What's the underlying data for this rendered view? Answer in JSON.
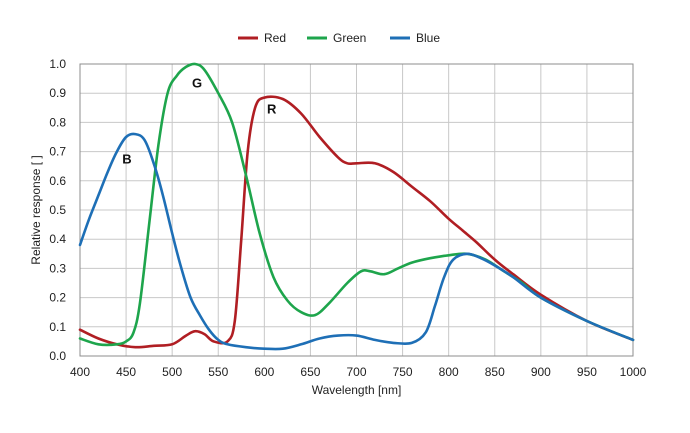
{
  "chart_data": {
    "type": "line",
    "title": "",
    "xlabel": "Wavelength [nm]",
    "ylabel": "Relative response [ ]",
    "xlim": [
      400,
      1000
    ],
    "ylim": [
      0,
      1.0
    ],
    "x_ticks": [
      400,
      450,
      500,
      550,
      600,
      650,
      700,
      750,
      800,
      850,
      900,
      950,
      1000
    ],
    "y_ticks": [
      0.0,
      0.1,
      0.2,
      0.3,
      0.4,
      0.5,
      0.6,
      0.7,
      0.8,
      0.9,
      1.0
    ],
    "x_tick_labels": [
      "400",
      "450",
      "500",
      "550",
      "600",
      "650",
      "700",
      "750",
      "800",
      "850",
      "900",
      "950",
      "1000"
    ],
    "y_tick_labels": [
      "0.0",
      "0.1",
      "0.2",
      "0.3",
      "0.4",
      "0.5",
      "0.6",
      "0.7",
      "0.8",
      "0.9",
      "1.0"
    ],
    "grid": true,
    "legend_position": "top-center",
    "series": [
      {
        "name": "Red",
        "color": "#b01e23",
        "annotation": "R",
        "annotation_at": [
          608,
          0.83
        ],
        "points": [
          [
            400,
            0.09
          ],
          [
            420,
            0.06
          ],
          [
            440,
            0.04
          ],
          [
            460,
            0.03
          ],
          [
            480,
            0.035
          ],
          [
            500,
            0.04
          ],
          [
            515,
            0.07
          ],
          [
            525,
            0.085
          ],
          [
            535,
            0.075
          ],
          [
            545,
            0.05
          ],
          [
            560,
            0.05
          ],
          [
            568,
            0.12
          ],
          [
            575,
            0.4
          ],
          [
            582,
            0.7
          ],
          [
            590,
            0.85
          ],
          [
            600,
            0.885
          ],
          [
            620,
            0.88
          ],
          [
            640,
            0.83
          ],
          [
            660,
            0.75
          ],
          [
            680,
            0.68
          ],
          [
            690,
            0.66
          ],
          [
            700,
            0.66
          ],
          [
            720,
            0.66
          ],
          [
            740,
            0.63
          ],
          [
            760,
            0.58
          ],
          [
            780,
            0.53
          ],
          [
            800,
            0.47
          ],
          [
            815,
            0.43
          ],
          [
            830,
            0.39
          ],
          [
            850,
            0.33
          ],
          [
            870,
            0.28
          ],
          [
            900,
            0.21
          ],
          [
            950,
            0.12
          ],
          [
            1000,
            0.055
          ]
        ]
      },
      {
        "name": "Green",
        "color": "#1ea54c",
        "annotation": "G",
        "annotation_at": [
          527,
          0.92
        ],
        "points": [
          [
            400,
            0.06
          ],
          [
            420,
            0.04
          ],
          [
            440,
            0.04
          ],
          [
            450,
            0.05
          ],
          [
            458,
            0.08
          ],
          [
            465,
            0.18
          ],
          [
            475,
            0.45
          ],
          [
            485,
            0.72
          ],
          [
            495,
            0.9
          ],
          [
            505,
            0.96
          ],
          [
            515,
            0.99
          ],
          [
            525,
            1.0
          ],
          [
            535,
            0.98
          ],
          [
            550,
            0.9
          ],
          [
            565,
            0.8
          ],
          [
            580,
            0.62
          ],
          [
            595,
            0.42
          ],
          [
            610,
            0.27
          ],
          [
            625,
            0.19
          ],
          [
            640,
            0.15
          ],
          [
            655,
            0.14
          ],
          [
            670,
            0.18
          ],
          [
            690,
            0.25
          ],
          [
            705,
            0.29
          ],
          [
            715,
            0.29
          ],
          [
            730,
            0.28
          ],
          [
            745,
            0.3
          ],
          [
            760,
            0.32
          ],
          [
            780,
            0.335
          ],
          [
            800,
            0.345
          ],
          [
            820,
            0.35
          ],
          [
            840,
            0.33
          ],
          [
            860,
            0.29
          ],
          [
            880,
            0.25
          ],
          [
            900,
            0.2
          ],
          [
            950,
            0.12
          ],
          [
            1000,
            0.055
          ]
        ]
      },
      {
        "name": "Blue",
        "color": "#1e6fb6",
        "annotation": "B",
        "annotation_at": [
          451,
          0.66
        ],
        "points": [
          [
            400,
            0.38
          ],
          [
            410,
            0.47
          ],
          [
            420,
            0.55
          ],
          [
            430,
            0.63
          ],
          [
            440,
            0.7
          ],
          [
            450,
            0.75
          ],
          [
            460,
            0.76
          ],
          [
            470,
            0.74
          ],
          [
            480,
            0.66
          ],
          [
            490,
            0.55
          ],
          [
            500,
            0.42
          ],
          [
            510,
            0.3
          ],
          [
            520,
            0.2
          ],
          [
            530,
            0.14
          ],
          [
            540,
            0.09
          ],
          [
            550,
            0.055
          ],
          [
            560,
            0.04
          ],
          [
            580,
            0.03
          ],
          [
            600,
            0.025
          ],
          [
            620,
            0.025
          ],
          [
            640,
            0.04
          ],
          [
            660,
            0.06
          ],
          [
            680,
            0.07
          ],
          [
            700,
            0.07
          ],
          [
            720,
            0.055
          ],
          [
            740,
            0.045
          ],
          [
            760,
            0.045
          ],
          [
            775,
            0.08
          ],
          [
            785,
            0.17
          ],
          [
            795,
            0.27
          ],
          [
            805,
            0.33
          ],
          [
            820,
            0.35
          ],
          [
            835,
            0.335
          ],
          [
            850,
            0.31
          ],
          [
            870,
            0.27
          ],
          [
            900,
            0.2
          ],
          [
            950,
            0.12
          ],
          [
            1000,
            0.055
          ]
        ]
      }
    ]
  }
}
